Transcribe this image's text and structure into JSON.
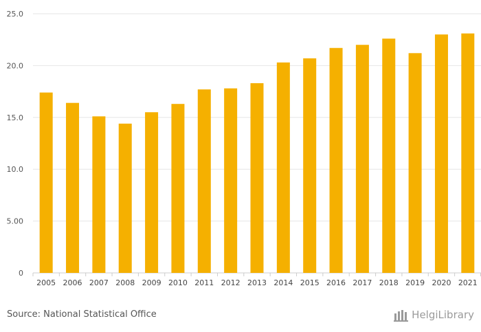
{
  "chart_data": {
    "type": "bar",
    "title": "",
    "xlabel": "",
    "ylabel": "",
    "categories": [
      "2005",
      "2006",
      "2007",
      "2008",
      "2009",
      "2010",
      "2011",
      "2012",
      "2013",
      "2014",
      "2015",
      "2016",
      "2017",
      "2018",
      "2019",
      "2020",
      "2021"
    ],
    "values": [
      17.4,
      16.4,
      15.1,
      14.4,
      15.5,
      16.3,
      17.7,
      17.8,
      18.3,
      20.3,
      20.7,
      21.7,
      22.0,
      22.6,
      21.2,
      23.0,
      23.1
    ],
    "ylim": [
      0,
      25
    ],
    "yticks": [
      0,
      5,
      10,
      15,
      20,
      25
    ],
    "ytick_labels": [
      "0",
      "5.00",
      "10.0",
      "15.0",
      "20.0",
      "25.0"
    ],
    "grid": true,
    "bar_color": "#f5b000"
  },
  "footer": {
    "source": "Source: National Statistical Office",
    "logo_text": "HelgiLibrary"
  },
  "colors": {
    "grid": "#e6e6e6",
    "axis": "#cccccc",
    "logo": "#9a9a9a"
  }
}
